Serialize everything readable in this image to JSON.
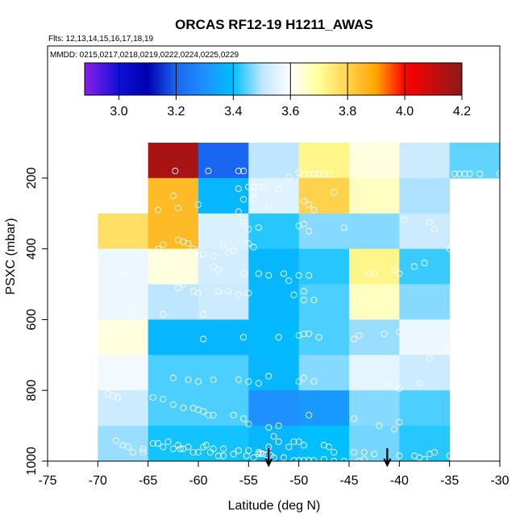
{
  "chart_data": {
    "type": "heatmap",
    "title": "ORCAS RF12-19 H1211_AWAS",
    "flights_label": "Flts: 12,13,14,15,16,17,18,19",
    "dates_label": "MMDD: 0215,0217,0218,0219,0222,0224,0225,0229",
    "xlabel": "Latitude (deg N)",
    "ylabel": "PSXC (mbar)",
    "xlim": [
      -75,
      -30
    ],
    "ylim": [
      1000,
      100
    ],
    "xticks": [
      -75,
      -70,
      -65,
      -60,
      -55,
      -50,
      -45,
      -40,
      -35,
      -30
    ],
    "yticks": [
      200,
      400,
      600,
      800,
      1000
    ],
    "colorbar": {
      "range": [
        2.88,
        4.2
      ],
      "ticks": [
        3.0,
        3.2,
        3.4,
        3.6,
        3.8,
        4.0,
        4.2
      ],
      "tick_labels": [
        "3.0",
        "3.2",
        "3.4",
        "3.6",
        "3.8",
        "4.0",
        "4.2"
      ],
      "stops": [
        [
          2.88,
          "#8a1fe8"
        ],
        [
          3.0,
          "#1010d8"
        ],
        [
          3.1,
          "#0000b0"
        ],
        [
          3.2,
          "#1a66f0"
        ],
        [
          3.3,
          "#1e90ff"
        ],
        [
          3.4,
          "#00bfff"
        ],
        [
          3.5,
          "#bfe6ff"
        ],
        [
          3.6,
          "#ffffff"
        ],
        [
          3.7,
          "#ffff99"
        ],
        [
          3.8,
          "#ffd24d"
        ],
        [
          3.9,
          "#ffa500"
        ],
        [
          4.0,
          "#ff0000"
        ],
        [
          4.2,
          "#8b1a1a"
        ]
      ]
    },
    "lat_edges": [
      -70,
      -65,
      -60,
      -55,
      -50,
      -45,
      -40,
      -35,
      -30
    ],
    "pres_edges": [
      100,
      200,
      300,
      400,
      500,
      600,
      700,
      800,
      900,
      1000
    ],
    "cells": [
      {
        "lat": -65,
        "p": 100,
        "v": 4.15
      },
      {
        "lat": -60,
        "p": 100,
        "v": 3.2
      },
      {
        "lat": -55,
        "p": 100,
        "v": 3.5
      },
      {
        "lat": -50,
        "p": 100,
        "v": 3.72
      },
      {
        "lat": -45,
        "p": 100,
        "v": 3.63
      },
      {
        "lat": -40,
        "p": 100,
        "v": 3.52
      },
      {
        "lat": -35,
        "p": 100,
        "v": 3.45
      },
      {
        "lat": -65,
        "p": 200,
        "v": 3.85
      },
      {
        "lat": -60,
        "p": 200,
        "v": 3.38
      },
      {
        "lat": -55,
        "p": 200,
        "v": 3.55
      },
      {
        "lat": -50,
        "p": 200,
        "v": 3.8
      },
      {
        "lat": -45,
        "p": 200,
        "v": 3.66
      },
      {
        "lat": -40,
        "p": 200,
        "v": 3.49
      },
      {
        "lat": -70,
        "p": 300,
        "v": 3.77
      },
      {
        "lat": -65,
        "p": 300,
        "v": 3.85
      },
      {
        "lat": -60,
        "p": 300,
        "v": 3.54
      },
      {
        "lat": -55,
        "p": 300,
        "v": 3.42
      },
      {
        "lat": -50,
        "p": 300,
        "v": 3.47
      },
      {
        "lat": -45,
        "p": 300,
        "v": 3.47
      },
      {
        "lat": -40,
        "p": 300,
        "v": 3.52
      },
      {
        "lat": -70,
        "p": 400,
        "v": 3.57
      },
      {
        "lat": -65,
        "p": 400,
        "v": 3.63
      },
      {
        "lat": -60,
        "p": 400,
        "v": 3.53
      },
      {
        "lat": -55,
        "p": 400,
        "v": 3.38
      },
      {
        "lat": -50,
        "p": 400,
        "v": 3.42
      },
      {
        "lat": -45,
        "p": 400,
        "v": 3.72
      },
      {
        "lat": -40,
        "p": 400,
        "v": 3.43
      },
      {
        "lat": -70,
        "p": 500,
        "v": 3.57
      },
      {
        "lat": -65,
        "p": 500,
        "v": 3.5
      },
      {
        "lat": -60,
        "p": 500,
        "v": 3.52
      },
      {
        "lat": -55,
        "p": 500,
        "v": 3.38
      },
      {
        "lat": -50,
        "p": 500,
        "v": 3.44
      },
      {
        "lat": -45,
        "p": 500,
        "v": 3.66
      },
      {
        "lat": -40,
        "p": 500,
        "v": 3.47
      },
      {
        "lat": -70,
        "p": 600,
        "v": 3.63
      },
      {
        "lat": -65,
        "p": 600,
        "v": 3.38
      },
      {
        "lat": -60,
        "p": 600,
        "v": 3.38
      },
      {
        "lat": -55,
        "p": 600,
        "v": 3.39
      },
      {
        "lat": -50,
        "p": 600,
        "v": 3.44
      },
      {
        "lat": -45,
        "p": 600,
        "v": 3.48
      },
      {
        "lat": -40,
        "p": 600,
        "v": 3.57
      },
      {
        "lat": -70,
        "p": 700,
        "v": 3.58
      },
      {
        "lat": -65,
        "p": 700,
        "v": 3.44
      },
      {
        "lat": -60,
        "p": 700,
        "v": 3.44
      },
      {
        "lat": -55,
        "p": 700,
        "v": 3.38
      },
      {
        "lat": -50,
        "p": 700,
        "v": 3.47
      },
      {
        "lat": -45,
        "p": 700,
        "v": 3.56
      },
      {
        "lat": -40,
        "p": 700,
        "v": 3.52
      },
      {
        "lat": -70,
        "p": 800,
        "v": 3.52
      },
      {
        "lat": -65,
        "p": 800,
        "v": 3.44
      },
      {
        "lat": -60,
        "p": 800,
        "v": 3.44
      },
      {
        "lat": -55,
        "p": 800,
        "v": 3.3
      },
      {
        "lat": -50,
        "p": 800,
        "v": 3.32
      },
      {
        "lat": -45,
        "p": 800,
        "v": 3.47
      },
      {
        "lat": -40,
        "p": 800,
        "v": 3.44
      },
      {
        "lat": -70,
        "p": 900,
        "v": 3.48
      },
      {
        "lat": -65,
        "p": 900,
        "v": 3.41
      },
      {
        "lat": -60,
        "p": 900,
        "v": 3.41
      },
      {
        "lat": -55,
        "p": 900,
        "v": 3.38
      },
      {
        "lat": -50,
        "p": 900,
        "v": 3.4
      },
      {
        "lat": -45,
        "p": 900,
        "v": 3.46
      },
      {
        "lat": -40,
        "p": 900,
        "v": 3.42
      }
    ],
    "points": [
      [
        -62.3,
        180
      ],
      [
        -59,
        180
      ],
      [
        -56,
        180
      ],
      [
        -55.5,
        180
      ],
      [
        -50,
        185
      ],
      [
        -49.5,
        190
      ],
      [
        -51,
        197
      ],
      [
        -49,
        188
      ],
      [
        -48.5,
        188
      ],
      [
        -48,
        188
      ],
      [
        -47.5,
        188
      ],
      [
        -47,
        188
      ],
      [
        -34.5,
        188
      ],
      [
        -34,
        188
      ],
      [
        -33.5,
        188
      ],
      [
        -33,
        188
      ],
      [
        -32,
        188
      ],
      [
        -30,
        188
      ],
      [
        -62.5,
        250
      ],
      [
        -55,
        225
      ],
      [
        -54.5,
        225
      ],
      [
        -54,
        225
      ],
      [
        -53.5,
        225
      ],
      [
        -56,
        230
      ],
      [
        -54.5,
        240
      ],
      [
        -52,
        232
      ],
      [
        -46.5,
        240
      ],
      [
        -54.5,
        258
      ],
      [
        -55.5,
        260
      ],
      [
        -53,
        280
      ],
      [
        -49.5,
        265
      ],
      [
        -49,
        275
      ],
      [
        -48.5,
        290
      ],
      [
        -56,
        295
      ],
      [
        -64,
        290
      ],
      [
        -62,
        285
      ],
      [
        -60,
        275
      ],
      [
        -55.5,
        325
      ],
      [
        -55,
        345
      ],
      [
        -54,
        340
      ],
      [
        -50,
        335
      ],
      [
        -49.5,
        330
      ],
      [
        -49,
        350
      ],
      [
        -45.5,
        340
      ],
      [
        -39.5,
        318
      ],
      [
        -37,
        325
      ],
      [
        -36.5,
        345
      ],
      [
        -60.5,
        400
      ],
      [
        -61,
        385
      ],
      [
        -61.5,
        380
      ],
      [
        -62,
        375
      ],
      [
        -63.5,
        388
      ],
      [
        -64,
        400
      ],
      [
        -60,
        420
      ],
      [
        -59.5,
        415
      ],
      [
        -58.5,
        420
      ],
      [
        -57,
        410
      ],
      [
        -56.5,
        405
      ],
      [
        -54.5,
        395
      ],
      [
        -55,
        385
      ],
      [
        -57.5,
        390
      ],
      [
        -63.5,
        440
      ],
      [
        -58.5,
        450
      ],
      [
        -58,
        460
      ],
      [
        -55.5,
        470
      ],
      [
        -54,
        470
      ],
      [
        -53,
        475
      ],
      [
        -51.5,
        470
      ],
      [
        -51,
        490
      ],
      [
        -50,
        475
      ],
      [
        -49,
        475
      ],
      [
        -43,
        470
      ],
      [
        -42.5,
        470
      ],
      [
        -40.5,
        460
      ],
      [
        -40,
        470
      ],
      [
        -38.5,
        450
      ],
      [
        -37.5,
        440
      ],
      [
        -35,
        400
      ],
      [
        -60,
        525
      ],
      [
        -56,
        530
      ],
      [
        -55,
        525
      ],
      [
        -50.5,
        530
      ],
      [
        -49.5,
        520
      ],
      [
        -49.5,
        545
      ],
      [
        -48.5,
        545
      ],
      [
        -67.5,
        470
      ],
      [
        -62,
        510
      ],
      [
        -61.5,
        500
      ],
      [
        -60.5,
        520
      ],
      [
        -58,
        520
      ],
      [
        -57,
        520
      ],
      [
        -66.5,
        575
      ],
      [
        -63.5,
        585
      ],
      [
        -59.5,
        585
      ],
      [
        -69,
        630
      ],
      [
        -67,
        625
      ],
      [
        -59.5,
        655
      ],
      [
        -55.5,
        650
      ],
      [
        -52,
        650
      ],
      [
        -50,
        645
      ],
      [
        -49.5,
        640
      ],
      [
        -49,
        640
      ],
      [
        -48,
        650
      ],
      [
        -44.5,
        655
      ],
      [
        -44,
        645
      ],
      [
        -41.5,
        640
      ],
      [
        -40,
        635
      ],
      [
        -35.5,
        680
      ],
      [
        -35,
        690
      ],
      [
        -37,
        710
      ],
      [
        -68,
        735
      ],
      [
        -62.5,
        765
      ],
      [
        -61,
        770
      ],
      [
        -60,
        775
      ],
      [
        -58.5,
        770
      ],
      [
        -56,
        770
      ],
      [
        -55,
        775
      ],
      [
        -54,
        780
      ],
      [
        -53,
        760
      ],
      [
        -50,
        775
      ],
      [
        -49.5,
        765
      ],
      [
        -48.5,
        775
      ],
      [
        -41,
        780
      ],
      [
        -40,
        795
      ],
      [
        -38,
        780
      ],
      [
        -69,
        810
      ],
      [
        -68.5,
        815
      ],
      [
        -68,
        820
      ],
      [
        -64.5,
        820
      ],
      [
        -63.5,
        825
      ],
      [
        -62.5,
        840
      ],
      [
        -61.5,
        850
      ],
      [
        -60.5,
        850
      ],
      [
        -60,
        855
      ],
      [
        -59.5,
        860
      ],
      [
        -59,
        870
      ],
      [
        -58.5,
        870
      ],
      [
        -56.5,
        870
      ],
      [
        -55.5,
        880
      ],
      [
        -55,
        895
      ],
      [
        -53,
        905
      ],
      [
        -52,
        900
      ],
      [
        -44.5,
        880
      ],
      [
        -42,
        900
      ],
      [
        -40.5,
        910
      ],
      [
        -40,
        890
      ],
      [
        -49,
        870
      ],
      [
        -52.5,
        930
      ],
      [
        -52,
        945
      ],
      [
        -50.5,
        945
      ],
      [
        -50,
        945
      ],
      [
        -49.5,
        955
      ],
      [
        -47.5,
        955
      ],
      [
        -47,
        960
      ],
      [
        -46.5,
        975
      ],
      [
        -44.5,
        975
      ],
      [
        -43.5,
        975
      ],
      [
        -42.5,
        980
      ],
      [
        -40,
        985
      ],
      [
        -38.5,
        985
      ],
      [
        -37,
        980
      ],
      [
        -35,
        985
      ],
      [
        -36.5,
        975
      ],
      [
        -66.5,
        975
      ],
      [
        -65.5,
        975
      ],
      [
        -64.5,
        950
      ],
      [
        -63.5,
        960
      ],
      [
        -62.5,
        965
      ],
      [
        -61,
        960
      ],
      [
        -59.5,
        960
      ],
      [
        -58.5,
        965
      ],
      [
        -57.5,
        965
      ],
      [
        -56,
        970
      ],
      [
        -55,
        970
      ],
      [
        -54,
        980
      ],
      [
        -53,
        960
      ],
      [
        -51,
        960
      ],
      [
        -68.2,
        942
      ],
      [
        -67.5,
        955
      ],
      [
        -67,
        960
      ],
      [
        -65.5,
        965
      ],
      [
        -64,
        950
      ],
      [
        -63,
        945
      ],
      [
        -62,
        955
      ],
      [
        -61.8,
        965
      ],
      [
        -61.5,
        965
      ],
      [
        -60.5,
        975
      ],
      [
        -60,
        975
      ],
      [
        -59.2,
        955
      ],
      [
        -58.8,
        975
      ],
      [
        -58,
        985
      ],
      [
        -57.5,
        985
      ],
      [
        -56.5,
        980
      ],
      [
        -55.2,
        985
      ],
      [
        -54.5,
        990
      ],
      [
        -54,
        975
      ],
      [
        -53.8,
        978
      ],
      [
        -53.6,
        980
      ],
      [
        -53.2,
        982
      ],
      [
        -52.8,
        984
      ],
      [
        -52.5,
        990
      ],
      [
        -51.5,
        990
      ],
      [
        -50.5,
        998
      ],
      [
        -50,
        998
      ],
      [
        -49.5,
        998
      ],
      [
        -49,
        998
      ],
      [
        -48.5,
        998
      ],
      [
        -47.5,
        995
      ],
      [
        -46.5,
        1000
      ],
      [
        -45.5,
        1000
      ],
      [
        -44,
        1000
      ],
      [
        -43.5,
        995
      ],
      [
        -38,
        990
      ],
      [
        -37.5,
        995
      ]
    ],
    "arrows": [
      -53,
      -41.2
    ]
  }
}
